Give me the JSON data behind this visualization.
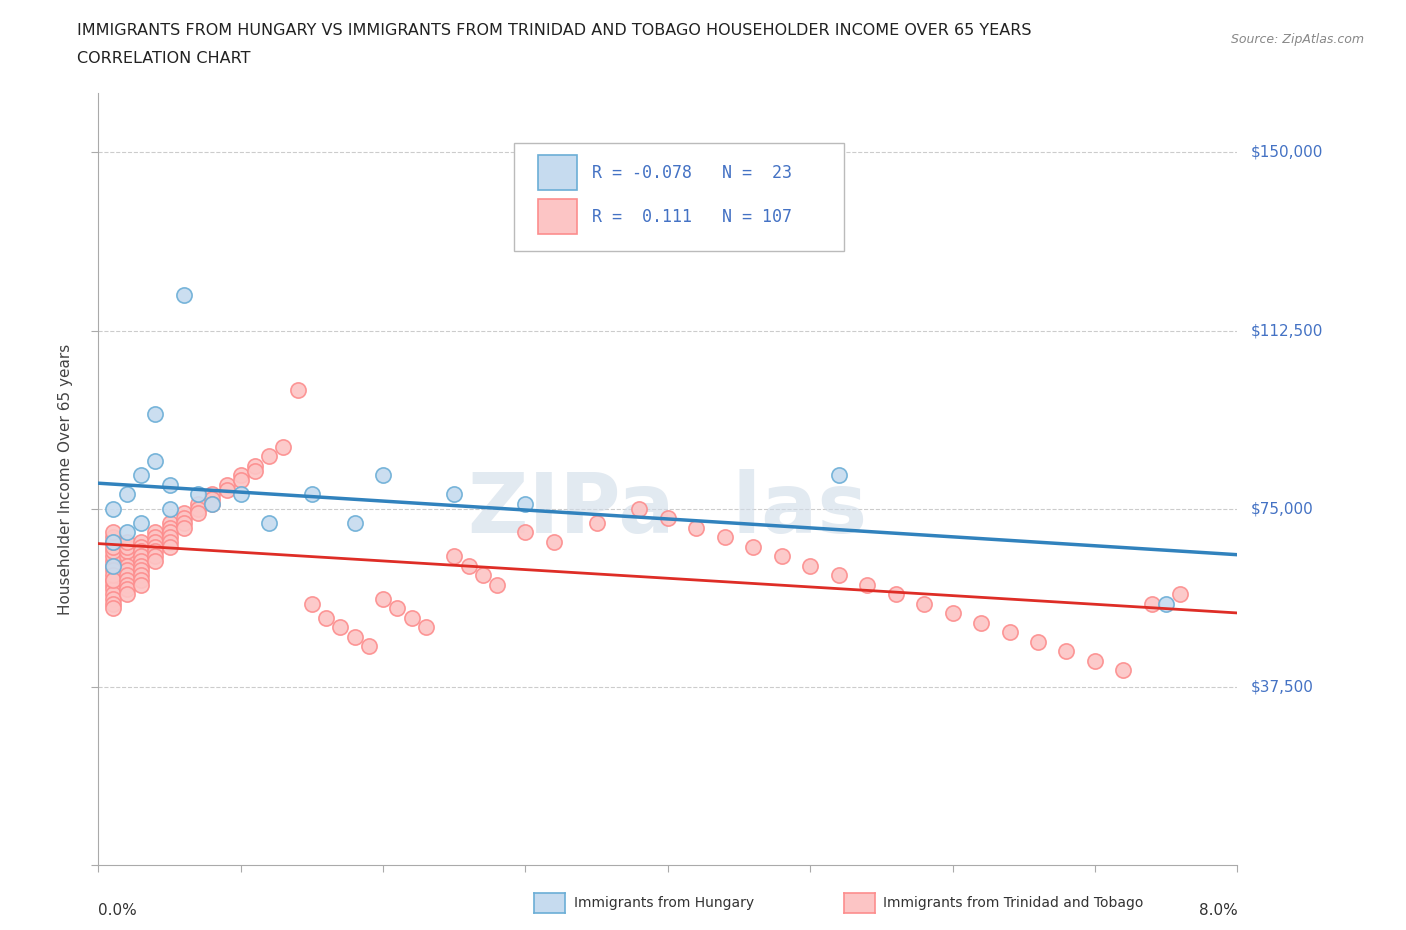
{
  "title_line1": "IMMIGRANTS FROM HUNGARY VS IMMIGRANTS FROM TRINIDAD AND TOBAGO HOUSEHOLDER INCOME OVER 65 YEARS",
  "title_line2": "CORRELATION CHART",
  "source_text": "Source: ZipAtlas.com",
  "ylabel": "Householder Income Over 65 years",
  "xmin": 0.0,
  "xmax": 0.08,
  "ymin": 0,
  "ymax": 162500,
  "yticks": [
    0,
    37500,
    75000,
    112500,
    150000
  ],
  "ytick_labels": [
    "",
    "$37,500",
    "$75,000",
    "$112,500",
    "$150,000"
  ],
  "hungary_color": "#6baed6",
  "hungary_face": "#c6dbef",
  "tt_color": "#fc8d8d",
  "tt_face": "#fcc5c5",
  "hungary_R": -0.078,
  "hungary_N": 23,
  "tt_R": 0.111,
  "tt_N": 107,
  "blue_line_color": "#3182bd",
  "pink_line_color": "#de2d26",
  "watermark_color": "#d0dce8",
  "hungary_x": [
    0.001,
    0.001,
    0.001,
    0.002,
    0.002,
    0.003,
    0.003,
    0.004,
    0.004,
    0.005,
    0.005,
    0.006,
    0.007,
    0.008,
    0.01,
    0.012,
    0.015,
    0.018,
    0.02,
    0.025,
    0.03,
    0.052,
    0.075
  ],
  "hungary_y": [
    63000,
    68000,
    75000,
    70000,
    78000,
    72000,
    82000,
    85000,
    95000,
    75000,
    80000,
    120000,
    78000,
    76000,
    78000,
    72000,
    78000,
    72000,
    82000,
    78000,
    76000,
    82000,
    55000
  ],
  "tt_x": [
    0.001,
    0.001,
    0.001,
    0.001,
    0.001,
    0.001,
    0.001,
    0.001,
    0.001,
    0.001,
    0.001,
    0.001,
    0.001,
    0.001,
    0.001,
    0.001,
    0.001,
    0.001,
    0.002,
    0.002,
    0.002,
    0.002,
    0.002,
    0.002,
    0.002,
    0.002,
    0.002,
    0.002,
    0.002,
    0.003,
    0.003,
    0.003,
    0.003,
    0.003,
    0.003,
    0.003,
    0.003,
    0.003,
    0.003,
    0.004,
    0.004,
    0.004,
    0.004,
    0.004,
    0.004,
    0.004,
    0.005,
    0.005,
    0.005,
    0.005,
    0.005,
    0.005,
    0.006,
    0.006,
    0.006,
    0.006,
    0.007,
    0.007,
    0.007,
    0.008,
    0.008,
    0.008,
    0.009,
    0.009,
    0.01,
    0.01,
    0.011,
    0.011,
    0.012,
    0.013,
    0.014,
    0.015,
    0.016,
    0.017,
    0.018,
    0.019,
    0.02,
    0.021,
    0.022,
    0.023,
    0.025,
    0.026,
    0.027,
    0.028,
    0.03,
    0.032,
    0.035,
    0.038,
    0.04,
    0.042,
    0.044,
    0.046,
    0.048,
    0.05,
    0.052,
    0.054,
    0.056,
    0.058,
    0.06,
    0.062,
    0.064,
    0.066,
    0.068,
    0.07,
    0.072,
    0.074,
    0.076
  ],
  "tt_y": [
    63000,
    64000,
    65000,
    66000,
    67000,
    68000,
    69000,
    60000,
    59000,
    58000,
    57000,
    56000,
    55000,
    54000,
    62000,
    70000,
    61000,
    60000,
    65000,
    66000,
    67000,
    68000,
    63000,
    62000,
    61000,
    60000,
    59000,
    58000,
    57000,
    68000,
    67000,
    66000,
    65000,
    64000,
    63000,
    62000,
    61000,
    60000,
    59000,
    70000,
    69000,
    68000,
    67000,
    66000,
    65000,
    64000,
    72000,
    71000,
    70000,
    69000,
    68000,
    67000,
    74000,
    73000,
    72000,
    71000,
    76000,
    75000,
    74000,
    78000,
    77000,
    76000,
    80000,
    79000,
    82000,
    81000,
    84000,
    83000,
    86000,
    88000,
    100000,
    55000,
    52000,
    50000,
    48000,
    46000,
    56000,
    54000,
    52000,
    50000,
    65000,
    63000,
    61000,
    59000,
    70000,
    68000,
    72000,
    75000,
    73000,
    71000,
    69000,
    67000,
    65000,
    63000,
    61000,
    59000,
    57000,
    55000,
    53000,
    51000,
    49000,
    47000,
    45000,
    43000,
    41000,
    55000,
    57000
  ]
}
